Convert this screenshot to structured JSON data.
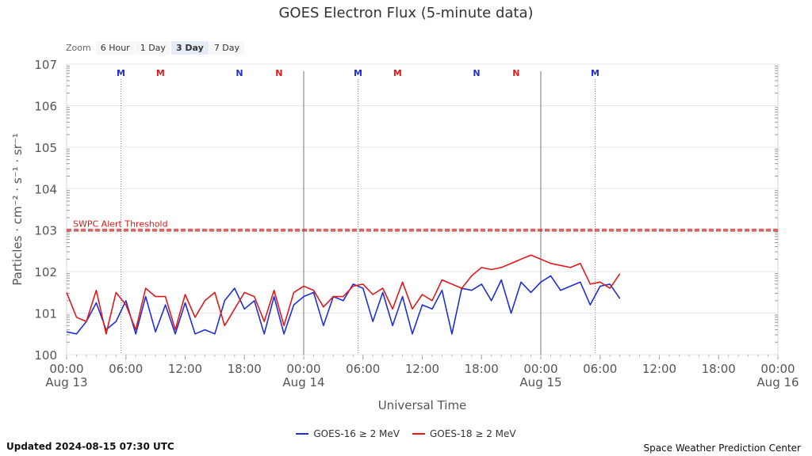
{
  "title": "GOES Electron Flux (5-minute data)",
  "zoom": {
    "label": "Zoom",
    "buttons": [
      "6 Hour",
      "1 Day",
      "3 Day",
      "7 Day"
    ],
    "selected": "3 Day"
  },
  "footer": {
    "updated": "Updated 2024-08-15 07:30 UTC",
    "credit": "Space Weather Prediction Center"
  },
  "colors": {
    "goes16": "#1f2fd8",
    "goes18": "#e01a1a",
    "threshold": "#e01a1a",
    "noon_marker": "#1f2fd8",
    "night_marker": "#e01a1a"
  },
  "chart_data": {
    "type": "line",
    "title": "GOES Electron Flux (5-minute data)",
    "xlabel": "Universal Time",
    "ylabel": "Particles · cm⁻² · s⁻¹ · sr⁻¹",
    "yscale": "log",
    "ylim_exp": [
      0,
      7
    ],
    "ytick_labels": [
      "100",
      "101",
      "102",
      "103",
      "104",
      "105",
      "106",
      "107"
    ],
    "x_range_hours": [
      0,
      72
    ],
    "xtick_labels": [
      {
        "time": "00:00",
        "date": "Aug 13"
      },
      {
        "time": "06:00",
        "date": ""
      },
      {
        "time": "12:00",
        "date": ""
      },
      {
        "time": "18:00",
        "date": ""
      },
      {
        "time": "00:00",
        "date": "Aug 14"
      },
      {
        "time": "06:00",
        "date": ""
      },
      {
        "time": "12:00",
        "date": ""
      },
      {
        "time": "18:00",
        "date": ""
      },
      {
        "time": "00:00",
        "date": "Aug 15"
      },
      {
        "time": "06:00",
        "date": ""
      },
      {
        "time": "12:00",
        "date": ""
      },
      {
        "time": "18:00",
        "date": ""
      },
      {
        "time": "00:00",
        "date": "Aug 16"
      }
    ],
    "day_boundaries_hours": [
      24,
      48
    ],
    "threshold": {
      "label": "SWPC Alert Threshold",
      "value": 1000
    },
    "markers": [
      {
        "label": "M",
        "hour": 5.5,
        "kind": "noon",
        "line": true
      },
      {
        "label": "M",
        "hour": 9.5,
        "kind": "night",
        "line": false
      },
      {
        "label": "N",
        "hour": 17.5,
        "kind": "noon",
        "line": false
      },
      {
        "label": "N",
        "hour": 21.5,
        "kind": "night",
        "line": false
      },
      {
        "label": "M",
        "hour": 29.5,
        "kind": "noon",
        "line": true
      },
      {
        "label": "M",
        "hour": 33.5,
        "kind": "night",
        "line": false
      },
      {
        "label": "N",
        "hour": 41.5,
        "kind": "noon",
        "line": false
      },
      {
        "label": "N",
        "hour": 45.5,
        "kind": "night",
        "line": false
      },
      {
        "label": "M",
        "hour": 53.5,
        "kind": "noon",
        "line": true
      }
    ],
    "series": [
      {
        "name": "GOES-16 ≥ 2 MeV",
        "color": "#1f2fd8",
        "x_hours": [
          0,
          1,
          2,
          3,
          4,
          5,
          6,
          7,
          8,
          9,
          10,
          11,
          12,
          13,
          14,
          15,
          16,
          17,
          18,
          19,
          20,
          21,
          22,
          23,
          24,
          25,
          26,
          27,
          28,
          29,
          30,
          31,
          32,
          33,
          34,
          35,
          36,
          37,
          38,
          39,
          40,
          41,
          42,
          43,
          44,
          45,
          46,
          47,
          48,
          49,
          50,
          51,
          52,
          53,
          54,
          55,
          56
        ],
        "log_values": [
          0.55,
          0.5,
          0.8,
          1.25,
          0.6,
          0.8,
          1.3,
          0.5,
          1.4,
          0.55,
          1.2,
          0.5,
          1.25,
          0.5,
          0.6,
          0.5,
          1.3,
          1.6,
          1.1,
          1.3,
          0.5,
          1.4,
          0.5,
          1.2,
          1.4,
          1.5,
          0.7,
          1.4,
          1.3,
          1.7,
          1.6,
          0.8,
          1.5,
          0.7,
          1.4,
          0.5,
          1.2,
          1.1,
          1.55,
          0.5,
          1.6,
          1.55,
          1.7,
          1.3,
          1.8,
          1.0,
          1.75,
          1.5,
          1.75,
          1.9,
          1.55,
          1.65,
          1.75,
          1.2,
          1.65,
          1.7,
          1.35
        ]
      },
      {
        "name": "GOES-18 ≥ 2 MeV",
        "color": "#e01a1a",
        "x_hours": [
          0,
          1,
          2,
          3,
          4,
          5,
          6,
          7,
          8,
          9,
          10,
          11,
          12,
          13,
          14,
          15,
          16,
          17,
          18,
          19,
          20,
          21,
          22,
          23,
          24,
          25,
          26,
          27,
          28,
          29,
          30,
          31,
          32,
          33,
          34,
          35,
          36,
          37,
          38,
          39,
          40,
          41,
          42,
          43,
          44,
          45,
          46,
          47,
          48,
          49,
          50,
          51,
          52,
          53,
          54,
          55,
          56
        ],
        "log_values": [
          1.5,
          0.9,
          0.8,
          1.55,
          0.5,
          1.5,
          1.2,
          0.6,
          1.6,
          1.4,
          1.4,
          0.6,
          1.45,
          0.9,
          1.3,
          1.5,
          0.7,
          1.1,
          1.5,
          1.4,
          0.8,
          1.55,
          0.7,
          1.5,
          1.65,
          1.55,
          1.15,
          1.4,
          1.4,
          1.65,
          1.7,
          1.45,
          1.6,
          1.1,
          1.75,
          1.1,
          1.45,
          1.3,
          1.8,
          1.7,
          1.6,
          1.9,
          2.1,
          2.05,
          2.1,
          2.2,
          2.3,
          2.4,
          2.3,
          2.2,
          2.15,
          2.1,
          2.2,
          1.7,
          1.75,
          1.6,
          1.95
        ]
      }
    ]
  }
}
